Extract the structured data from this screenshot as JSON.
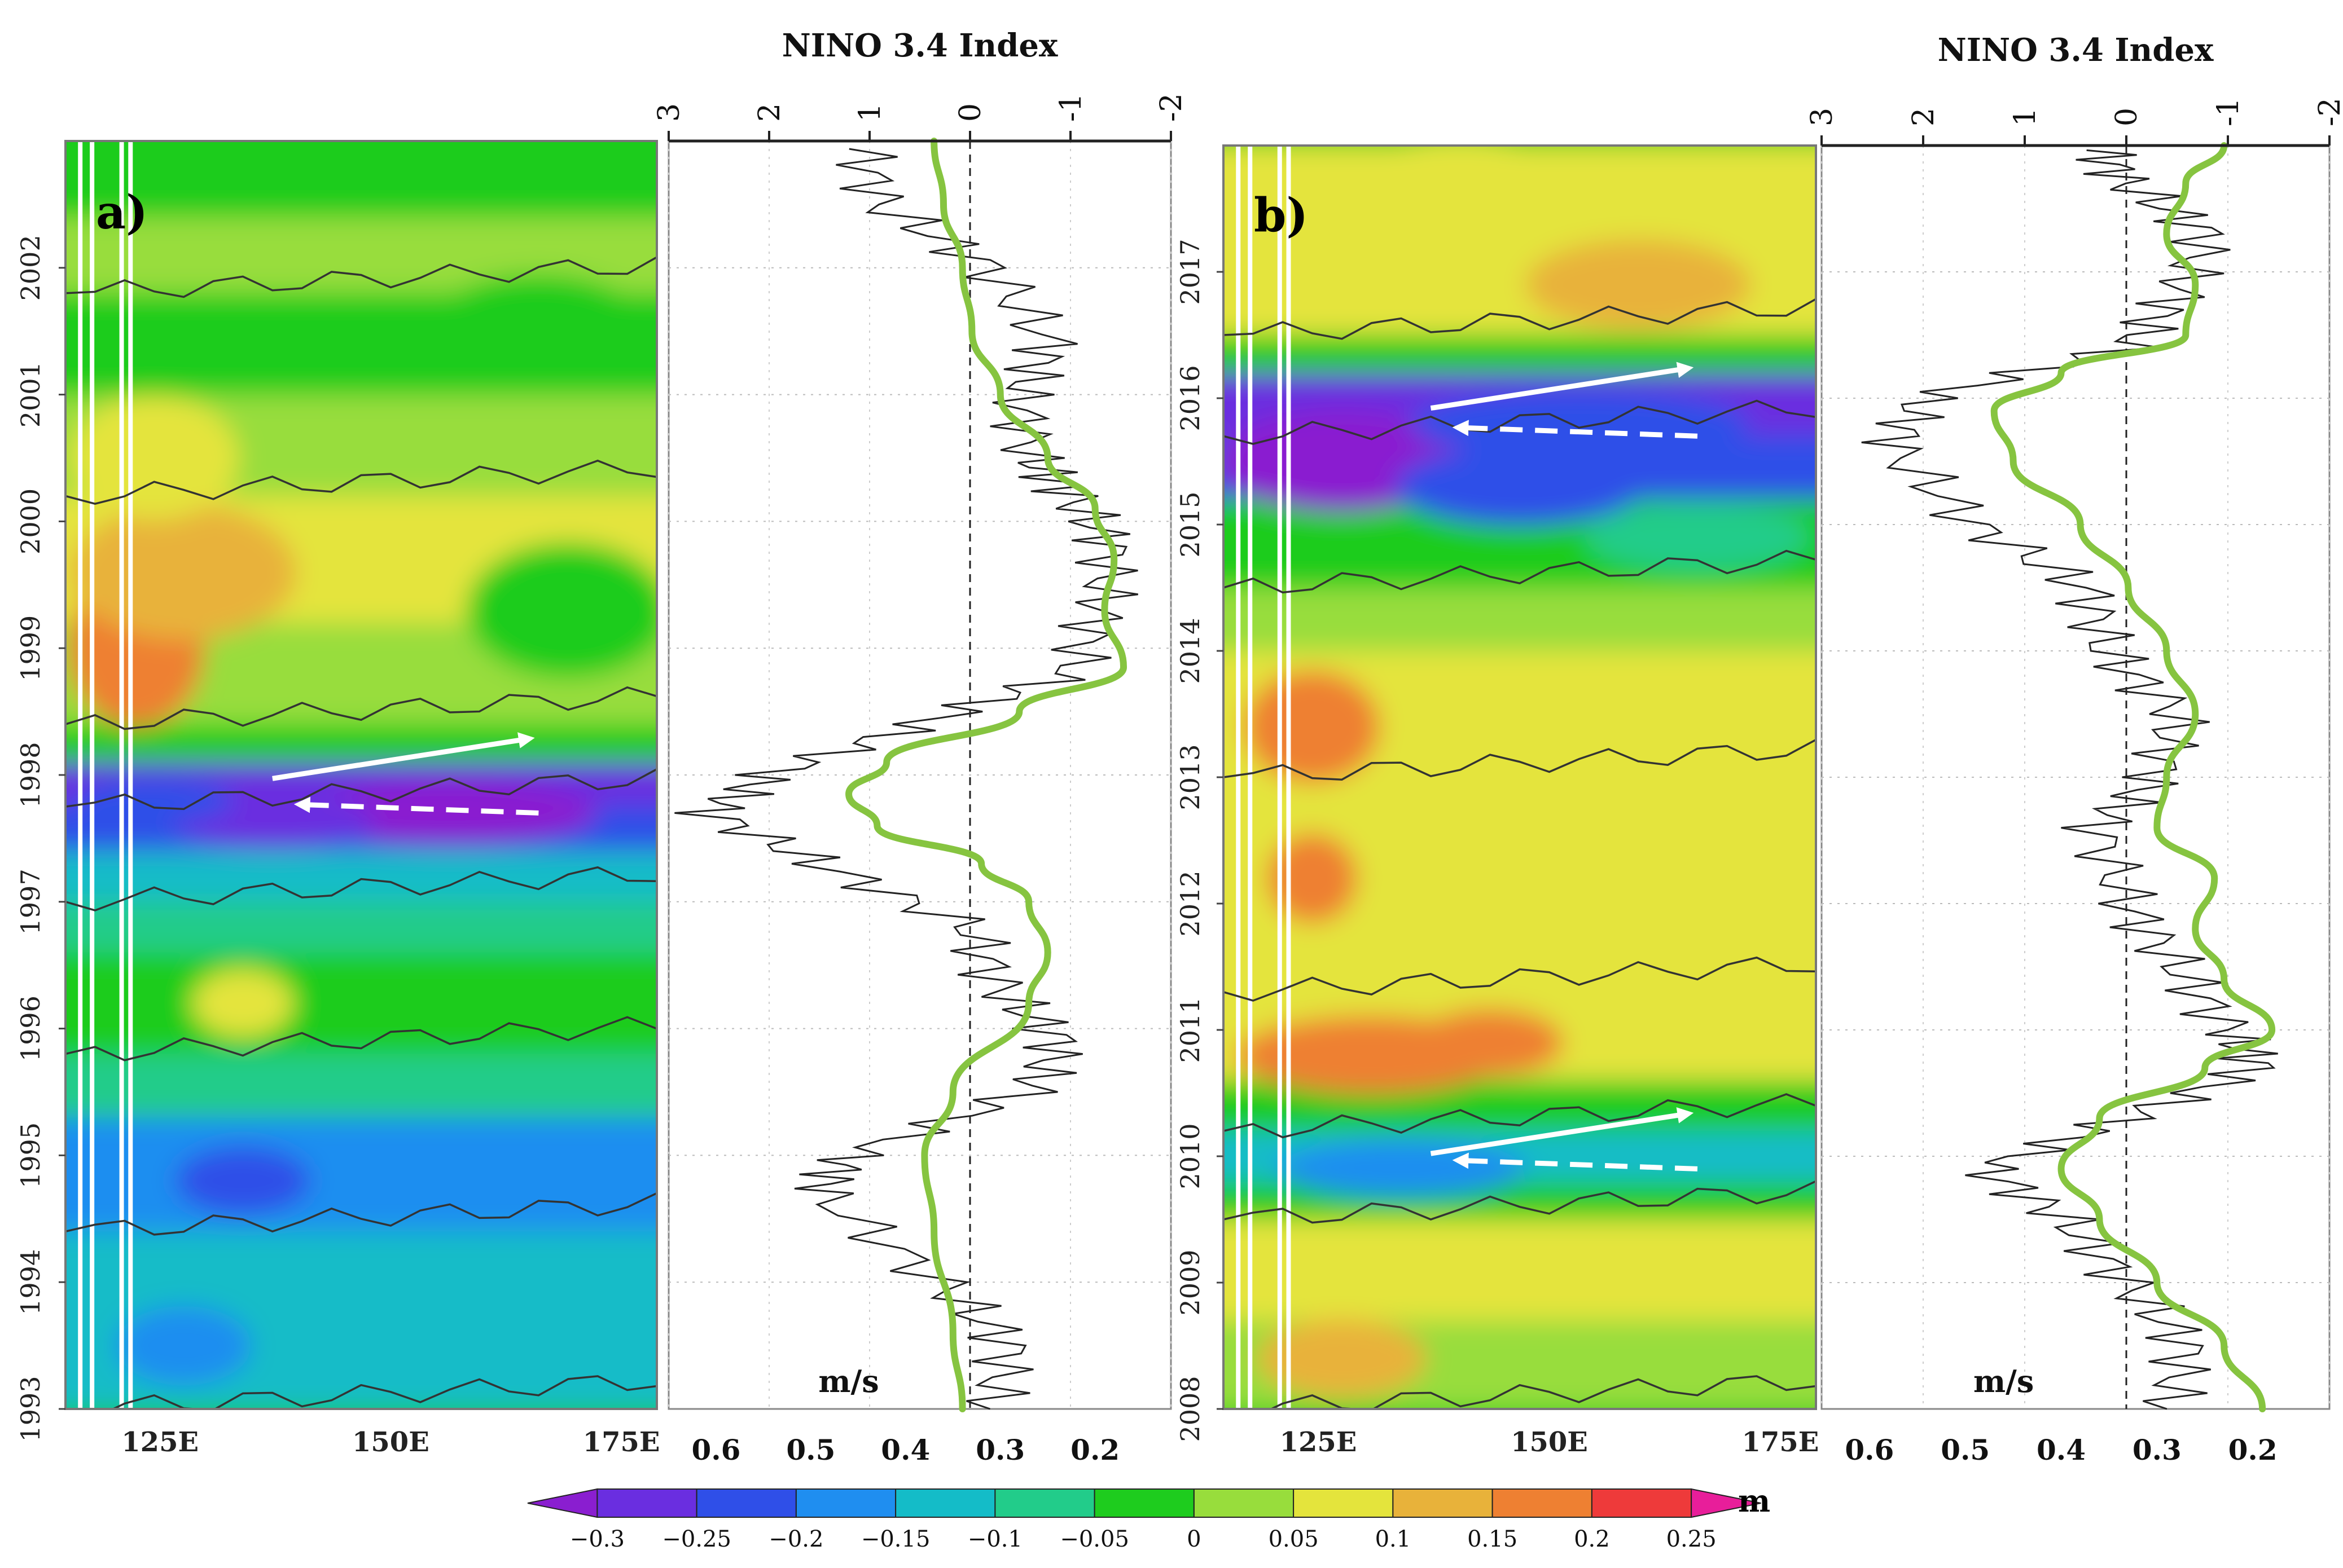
{
  "panels": [
    {
      "id": "a",
      "label": "a)",
      "years": [
        "1993",
        "1994",
        "1995",
        "1996",
        "1997",
        "1998",
        "1999",
        "2000",
        "2001",
        "2002"
      ],
      "year_start": 1993,
      "year_end": 2003.0,
      "lon_ticks": [
        "125E",
        "150E",
        "175E"
      ],
      "nino_title": "NINO 3.4 Index",
      "nino_ticks": [
        "3",
        "2",
        "1",
        "0",
        "-1",
        "-2"
      ],
      "ms_label": "m/s",
      "ms_ticks": [
        "0.6",
        "0.5",
        "0.4",
        "0.3",
        "0.2"
      ],
      "propagation_arrows": {
        "eastward_year": 1998.15,
        "westward_year": 1997.7
      }
    },
    {
      "id": "b",
      "label": "b)",
      "years": [
        "2008",
        "2009",
        "2010",
        "2011",
        "2012",
        "2013",
        "2014",
        "2015",
        "2016",
        "2017"
      ],
      "year_start": 2008,
      "year_end": 2018.0,
      "lon_ticks": [
        "125E",
        "150E",
        "175E"
      ],
      "nino_title": "NINO 3.4 Index",
      "nino_ticks": [
        "3",
        "2",
        "1",
        "0",
        "-1",
        "-2"
      ],
      "ms_label": "m/s",
      "ms_ticks": [
        "0.6",
        "0.5",
        "0.4",
        "0.3",
        "0.2"
      ],
      "propagation_arrows": [
        {
          "eastward_year": 2016.1,
          "westward_year": 2015.7
        },
        {
          "eastward_year": 2010.2,
          "westward_year": 2009.9
        }
      ]
    }
  ],
  "colorbar": {
    "unit": "m",
    "ticks": [
      "-0.3",
      "-0.25",
      "-0.2",
      "-0.15",
      "-0.1",
      "-0.05",
      "0",
      "0.05",
      "0.1",
      "0.15",
      "0.2",
      "0.25"
    ],
    "colors": [
      "#8a1ed0",
      "#6a2ee0",
      "#2f4fe8",
      "#1f8ef0",
      "#14bcc8",
      "#22cc8a",
      "#1ecc1e",
      "#98dd3c",
      "#e4e43c",
      "#e8b23a",
      "#ee8032",
      "#ee3a3a",
      "#e81e9a"
    ]
  },
  "chart_data": [
    {
      "type": "heatmap",
      "panel": "a",
      "y_axis": "year",
      "y_range": [
        1993,
        2003
      ],
      "x_axis": "longitude",
      "x_ticks": [
        "125E",
        "150E",
        "175E"
      ],
      "colorbar_unit": "m",
      "smoothed_speed_ms": {
        "x_range": [
          0.65,
          0.12
        ],
        "points": [
          [
            0.34,
            1993.0
          ],
          [
            0.35,
            1993.6
          ],
          [
            0.37,
            1994.4
          ],
          [
            0.38,
            1995.0
          ],
          [
            0.35,
            1995.5
          ],
          [
            0.27,
            1996.2
          ],
          [
            0.25,
            1996.6
          ],
          [
            0.27,
            1997.0
          ],
          [
            0.32,
            1997.3
          ],
          [
            0.43,
            1997.6
          ],
          [
            0.46,
            1997.85
          ],
          [
            0.42,
            1998.1
          ],
          [
            0.28,
            1998.5
          ],
          [
            0.17,
            1998.85
          ],
          [
            0.19,
            1999.3
          ],
          [
            0.18,
            1999.7
          ],
          [
            0.2,
            2000.1
          ],
          [
            0.25,
            2000.5
          ],
          [
            0.3,
            2001.0
          ],
          [
            0.33,
            2001.5
          ],
          [
            0.34,
            2002.0
          ],
          [
            0.36,
            2002.5
          ],
          [
            0.37,
            2003.0
          ]
        ]
      },
      "nino34_index": {
        "x_range": [
          3,
          -2
        ],
        "points": [
          [
            -0.2,
            1993.0
          ],
          [
            -0.4,
            1993.5
          ],
          [
            0.3,
            1994.0
          ],
          [
            1.5,
            1994.7
          ],
          [
            1.2,
            1995.0
          ],
          [
            -0.6,
            1995.5
          ],
          [
            -0.9,
            1995.9
          ],
          [
            -0.3,
            1996.3
          ],
          [
            0.0,
            1996.8
          ],
          [
            1.5,
            1997.3
          ],
          [
            2.6,
            1997.7
          ],
          [
            2.0,
            1998.0
          ],
          [
            0.5,
            1998.4
          ],
          [
            -1.0,
            1998.8
          ],
          [
            -1.3,
            1999.3
          ],
          [
            -1.4,
            1999.8
          ],
          [
            -1.0,
            2000.2
          ],
          [
            -0.6,
            2000.5
          ],
          [
            -0.5,
            2001.0
          ],
          [
            -0.8,
            2001.4
          ],
          [
            -0.2,
            2002.0
          ],
          [
            0.9,
            2002.5
          ],
          [
            1.1,
            2003.0
          ]
        ]
      }
    },
    {
      "type": "heatmap",
      "panel": "b",
      "y_axis": "year",
      "y_range": [
        2008,
        2018
      ],
      "x_axis": "longitude",
      "x_ticks": [
        "125E",
        "150E",
        "175E"
      ],
      "colorbar_unit": "m",
      "smoothed_speed_ms": {
        "x_range": [
          0.65,
          0.12
        ],
        "points": [
          [
            0.19,
            2008.0
          ],
          [
            0.23,
            2008.5
          ],
          [
            0.3,
            2009.0
          ],
          [
            0.36,
            2009.5
          ],
          [
            0.4,
            2009.9
          ],
          [
            0.36,
            2010.3
          ],
          [
            0.25,
            2010.7
          ],
          [
            0.18,
            2011.0
          ],
          [
            0.23,
            2011.4
          ],
          [
            0.26,
            2011.8
          ],
          [
            0.24,
            2012.2
          ],
          [
            0.3,
            2012.6
          ],
          [
            0.29,
            2013.0
          ],
          [
            0.26,
            2013.5
          ],
          [
            0.29,
            2014.0
          ],
          [
            0.33,
            2014.5
          ],
          [
            0.38,
            2015.0
          ],
          [
            0.45,
            2015.5
          ],
          [
            0.47,
            2015.9
          ],
          [
            0.4,
            2016.2
          ],
          [
            0.27,
            2016.5
          ],
          [
            0.26,
            2016.9
          ],
          [
            0.29,
            2017.3
          ],
          [
            0.27,
            2017.7
          ],
          [
            0.23,
            2018.0
          ]
        ]
      },
      "nino34_index": {
        "x_range": [
          3,
          -2
        ],
        "points": [
          [
            -0.4,
            2008.0
          ],
          [
            -0.6,
            2008.5
          ],
          [
            0.0,
            2009.0
          ],
          [
            0.6,
            2009.5
          ],
          [
            1.4,
            2009.9
          ],
          [
            0.0,
            2010.3
          ],
          [
            -1.3,
            2010.7
          ],
          [
            -1.0,
            2011.0
          ],
          [
            -0.5,
            2011.5
          ],
          [
            0.0,
            2012.0
          ],
          [
            0.3,
            2012.6
          ],
          [
            -0.3,
            2013.0
          ],
          [
            -0.5,
            2013.5
          ],
          [
            0.2,
            2014.0
          ],
          [
            0.4,
            2014.5
          ],
          [
            1.5,
            2015.0
          ],
          [
            2.3,
            2015.6
          ],
          [
            2.0,
            2016.0
          ],
          [
            0.0,
            2016.4
          ],
          [
            -0.5,
            2016.8
          ],
          [
            -0.8,
            2017.3
          ],
          [
            0.0,
            2017.7
          ],
          [
            0.3,
            2018.0
          ]
        ]
      }
    }
  ]
}
